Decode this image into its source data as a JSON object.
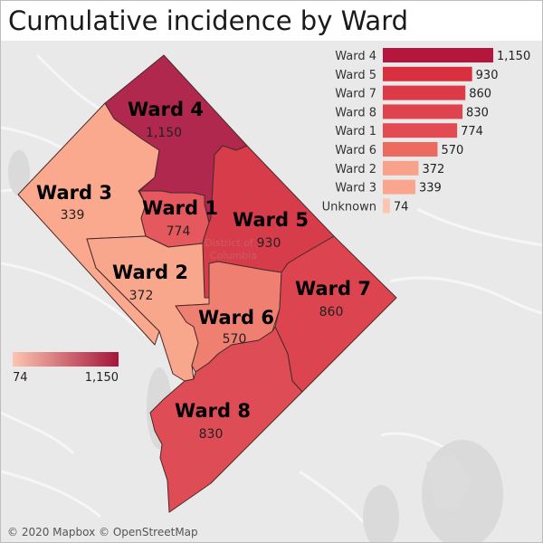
{
  "title": "Cumulative incidence by Ward",
  "attribution": "© 2020 Mapbox © OpenStreetMap",
  "basemap_label": [
    "District of",
    "Columbia"
  ],
  "legend": {
    "min_label": "74",
    "max_label": "1,150",
    "min_color": "#fcc5b0",
    "max_color": "#a5143a"
  },
  "wards": [
    {
      "id": "4",
      "label": "Ward 4",
      "value_label": "1,150",
      "value": 1150,
      "color": "#b1284f"
    },
    {
      "id": "5",
      "label": "Ward 5",
      "value_label": "930",
      "value": 930,
      "color": "#d63c4a"
    },
    {
      "id": "7",
      "label": "Ward 7",
      "value_label": "860",
      "value": 860,
      "color": "#dc4550"
    },
    {
      "id": "8",
      "label": "Ward 8",
      "value_label": "830",
      "value": 830,
      "color": "#de4c55"
    },
    {
      "id": "1",
      "label": "Ward 1",
      "value_label": "774",
      "value": 774,
      "color": "#e5585d"
    },
    {
      "id": "6",
      "label": "Ward 6",
      "value_label": "570",
      "value": 570,
      "color": "#ef7f70"
    },
    {
      "id": "2",
      "label": "Ward 2",
      "value_label": "372",
      "value": 372,
      "color": "#f9a78c"
    },
    {
      "id": "3",
      "label": "Ward 3",
      "value_label": "339",
      "value": 339,
      "color": "#faa88e"
    }
  ],
  "chart_data": {
    "type": "bar",
    "orientation": "horizontal",
    "categories": [
      "Ward 4",
      "Ward 5",
      "Ward 7",
      "Ward 8",
      "Ward 1",
      "Ward 6",
      "Ward 2",
      "Ward 3",
      "Unknown"
    ],
    "values": [
      1150,
      930,
      860,
      830,
      774,
      570,
      372,
      339,
      74
    ],
    "value_labels": [
      "1,150",
      "930",
      "860",
      "830",
      "774",
      "570",
      "372",
      "339",
      "74"
    ],
    "colors": [
      "#b5163e",
      "#d7313f",
      "#dc3a46",
      "#df434d",
      "#e34b52",
      "#ec6a60",
      "#f9a28b",
      "#faa68e",
      "#fcc5b0"
    ],
    "xlim": [
      0,
      1150
    ]
  }
}
